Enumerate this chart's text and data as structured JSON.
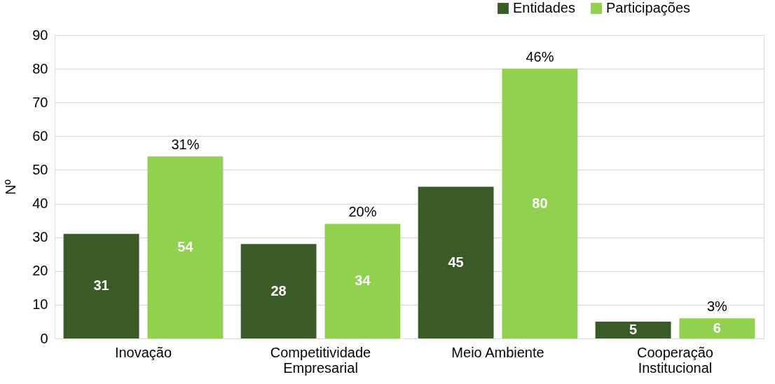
{
  "chart_data": {
    "type": "bar",
    "ylabel": "Nº",
    "categories": [
      "Inovação",
      "Competitividade Empresarial",
      "Meio Ambiente",
      "Cooperação Institucional"
    ],
    "series": [
      {
        "name": "Entidades",
        "color": "#3a5a27",
        "values": [
          31,
          28,
          45,
          5
        ]
      },
      {
        "name": "Participações",
        "color": "#92d050",
        "values": [
          54,
          34,
          80,
          6
        ]
      }
    ],
    "annotations": [
      "31%",
      "20%",
      "46%",
      "3%"
    ],
    "ylim": [
      0,
      90
    ],
    "yticks": [
      0,
      10,
      20,
      30,
      40,
      50,
      60,
      70,
      80,
      90
    ],
    "grid": "y",
    "legend": "top right",
    "data_labels": true
  }
}
